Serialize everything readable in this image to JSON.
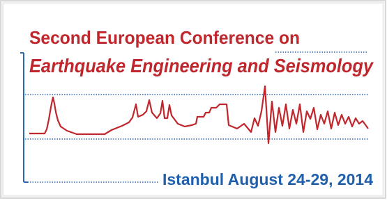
{
  "header": {
    "line1": "Second European Conference on",
    "line2": "Earthquake Engineering and Seismology"
  },
  "footer": {
    "date": "Istanbul August 24-29, 2014"
  }
}
